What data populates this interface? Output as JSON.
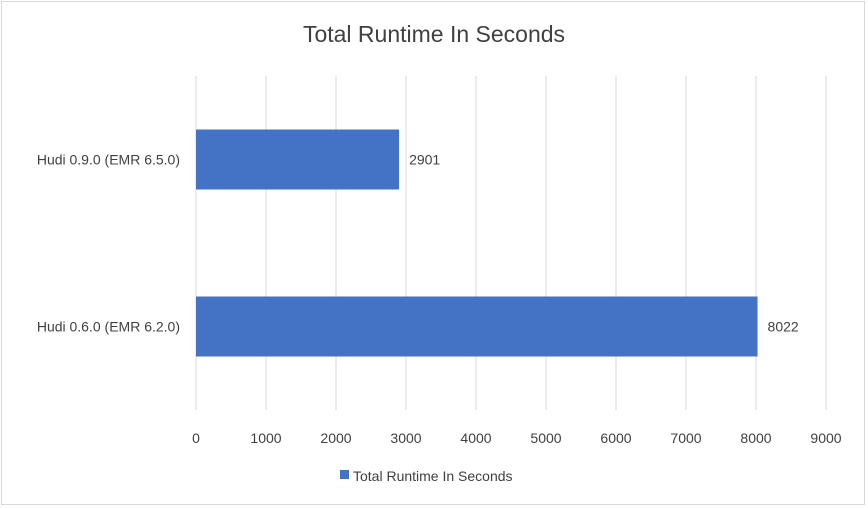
{
  "chart_data": {
    "type": "bar",
    "orientation": "horizontal",
    "title": "Total Runtime In Seconds",
    "categories": [
      "Hudi 0.9.0 (EMR 6.5.0)",
      "Hudi 0.6.0 (EMR 6.2.0)"
    ],
    "series": [
      {
        "name": "Total Runtime In Seconds",
        "values": [
          2901,
          8022
        ],
        "color": "#4472c4"
      }
    ],
    "xlim": [
      0,
      9000
    ],
    "x_ticks": [
      "0",
      "1000",
      "2000",
      "3000",
      "4000",
      "5000",
      "6000",
      "7000",
      "8000",
      "9000"
    ],
    "grid": true,
    "data_labels": true,
    "legend_position": "bottom"
  }
}
